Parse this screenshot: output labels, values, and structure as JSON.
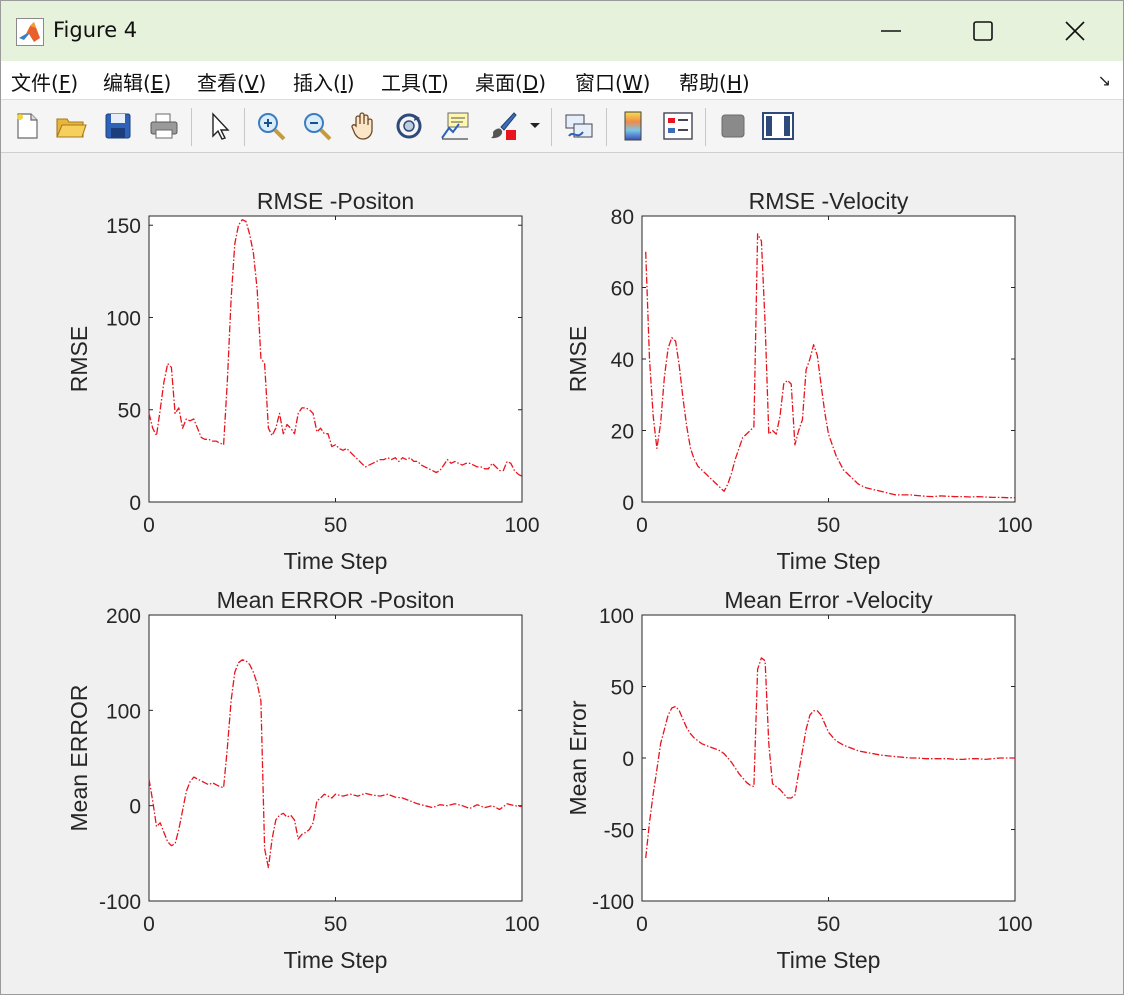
{
  "window": {
    "title": "Figure 4"
  },
  "menu": {
    "items": [
      {
        "label": "文件(",
        "key": "F",
        "close": ")"
      },
      {
        "label": "编辑(",
        "key": "E",
        "close": ")"
      },
      {
        "label": "查看(",
        "key": "V",
        "close": ")"
      },
      {
        "label": "插入(",
        "key": "I",
        "close": ")"
      },
      {
        "label": "工具(",
        "key": "T",
        "close": ")"
      },
      {
        "label": "桌面(",
        "key": "D",
        "close": ")"
      },
      {
        "label": "窗口(",
        "key": "W",
        "close": ")"
      },
      {
        "label": "帮助(",
        "key": "H",
        "close": ")"
      }
    ]
  },
  "toolbar": {
    "icons": [
      "new-figure-icon",
      "open-icon",
      "save-icon",
      "print-icon",
      "select-arrow-icon",
      "zoom-in-icon",
      "zoom-out-icon",
      "pan-hand-icon",
      "rotate-3d-icon",
      "data-cursor-icon",
      "brush-icon",
      "brush-dropdown-icon",
      "link-plot-icon",
      "colorbar-icon",
      "legend-icon",
      "hide-plot-tools-icon",
      "show-plot-tools-icon"
    ]
  },
  "chart_data": [
    {
      "type": "line",
      "title": "RMSE -Positon",
      "xlabel": "Time Step",
      "ylabel": "RMSE",
      "xlim": [
        0,
        100
      ],
      "ylim": [
        0,
        155
      ],
      "xticks": [
        "0",
        "50",
        "100"
      ],
      "yticks": [
        "0",
        "50",
        "100",
        "150"
      ],
      "color": "#e8141e",
      "x": [
        0,
        1,
        2,
        3,
        4,
        5,
        6,
        7,
        8,
        9,
        10,
        11,
        12,
        13,
        14,
        15,
        16,
        17,
        18,
        19,
        20,
        21,
        22,
        23,
        24,
        25,
        26,
        27,
        28,
        29,
        30,
        31,
        32,
        33,
        34,
        35,
        36,
        37,
        38,
        39,
        40,
        41,
        42,
        43,
        44,
        45,
        46,
        47,
        48,
        49,
        50,
        51,
        52,
        53,
        54,
        55,
        56,
        57,
        58,
        59,
        60,
        61,
        62,
        63,
        64,
        65,
        66,
        67,
        68,
        69,
        70,
        71,
        72,
        73,
        74,
        75,
        76,
        77,
        78,
        79,
        80,
        81,
        82,
        83,
        84,
        85,
        86,
        87,
        88,
        89,
        90,
        91,
        92,
        93,
        94,
        95,
        96,
        97,
        98,
        99,
        100
      ],
      "y": [
        48,
        40,
        36,
        50,
        65,
        75,
        73,
        48,
        51,
        40,
        45,
        44,
        45,
        40,
        35,
        34,
        34,
        33,
        33,
        32,
        31,
        65,
        110,
        140,
        150,
        153,
        152,
        145,
        135,
        115,
        78,
        75,
        40,
        36,
        40,
        48,
        37,
        42,
        40,
        37,
        48,
        51,
        51,
        50,
        48,
        38,
        40,
        37,
        37,
        30,
        31,
        29,
        28,
        29,
        27,
        25,
        23,
        21,
        19,
        20,
        21,
        22,
        23,
        23,
        24,
        23,
        24,
        22,
        24,
        23,
        24,
        22,
        22,
        20,
        19,
        18,
        17,
        16,
        17,
        20,
        23,
        21,
        22,
        21,
        20,
        21,
        21,
        20,
        19,
        19,
        18,
        18,
        21,
        19,
        17,
        17,
        22,
        21,
        17,
        15,
        14
      ]
    },
    {
      "type": "line",
      "title": "RMSE -Velocity",
      "xlabel": "Time Step",
      "ylabel": "RMSE",
      "xlim": [
        0,
        100
      ],
      "ylim": [
        0,
        80
      ],
      "xticks": [
        "0",
        "50",
        "100"
      ],
      "yticks": [
        "0",
        "20",
        "40",
        "60",
        "80"
      ],
      "color": "#e8141e",
      "x": [
        1,
        2,
        3,
        4,
        5,
        6,
        7,
        8,
        9,
        10,
        11,
        12,
        13,
        14,
        15,
        16,
        17,
        18,
        19,
        20,
        21,
        22,
        23,
        24,
        25,
        26,
        27,
        28,
        29,
        30,
        31,
        32,
        33,
        34,
        35,
        36,
        37,
        38,
        39,
        40,
        41,
        42,
        43,
        44,
        45,
        46,
        47,
        48,
        49,
        50,
        52,
        54,
        56,
        58,
        60,
        62,
        64,
        66,
        68,
        70,
        72,
        74,
        76,
        78,
        80,
        82,
        84,
        86,
        88,
        90,
        92,
        94,
        96,
        98,
        100
      ],
      "y": [
        70,
        40,
        24,
        15,
        22,
        35,
        43,
        46,
        45,
        38,
        29,
        21,
        15,
        12,
        10,
        9,
        8,
        7,
        6,
        5,
        4,
        3,
        5,
        8,
        12,
        15,
        18,
        19,
        20,
        21,
        75,
        73,
        50,
        19,
        20,
        19,
        24,
        33,
        34,
        33,
        16,
        20,
        23,
        37,
        40,
        44,
        41,
        33,
        25,
        19,
        13,
        9,
        7,
        5,
        4,
        3.5,
        3,
        2.5,
        2,
        2,
        2,
        1.8,
        1.6,
        1.5,
        1.7,
        1.6,
        1.5,
        1.5,
        1.4,
        1.5,
        1.4,
        1.3,
        1.3,
        1.2,
        1.2
      ]
    },
    {
      "type": "line",
      "title": "Mean ERROR -Positon",
      "xlabel": "Time Step",
      "ylabel": "Mean ERROR",
      "xlim": [
        0,
        100
      ],
      "ylim": [
        -100,
        200
      ],
      "xticks": [
        "0",
        "50",
        "100"
      ],
      "yticks": [
        "-100",
        "0",
        "100",
        "200"
      ],
      "color": "#e8141e",
      "x": [
        0,
        1,
        2,
        3,
        4,
        5,
        6,
        7,
        8,
        9,
        10,
        11,
        12,
        13,
        14,
        15,
        16,
        17,
        18,
        19,
        20,
        21,
        22,
        23,
        24,
        25,
        26,
        27,
        28,
        29,
        30,
        31,
        32,
        33,
        34,
        35,
        36,
        37,
        38,
        39,
        40,
        41,
        42,
        43,
        44,
        45,
        46,
        47,
        48,
        49,
        50,
        52,
        54,
        56,
        58,
        60,
        62,
        64,
        66,
        68,
        70,
        72,
        74,
        76,
        78,
        80,
        82,
        84,
        86,
        88,
        90,
        92,
        94,
        96,
        98,
        100
      ],
      "y": [
        28,
        5,
        -22,
        -18,
        -28,
        -38,
        -42,
        -40,
        -25,
        -5,
        15,
        25,
        30,
        28,
        26,
        24,
        22,
        24,
        22,
        20,
        19,
        60,
        110,
        140,
        150,
        153,
        152,
        148,
        140,
        128,
        110,
        -45,
        -65,
        -35,
        -15,
        -10,
        -8,
        -12,
        -10,
        -15,
        -35,
        -30,
        -28,
        -25,
        -18,
        5,
        8,
        12,
        10,
        8,
        12,
        10,
        12,
        10,
        13,
        11,
        10,
        12,
        9,
        8,
        5,
        2,
        0,
        -2,
        1,
        0,
        2,
        0,
        -3,
        1,
        -2,
        0,
        -4,
        2,
        0,
        -1
      ]
    },
    {
      "type": "line",
      "title": "Mean Error -Velocity",
      "xlabel": "Time Step",
      "ylabel": "Mean Error",
      "xlim": [
        0,
        100
      ],
      "ylim": [
        -100,
        100
      ],
      "xticks": [
        "0",
        "50",
        "100"
      ],
      "yticks": [
        "-100",
        "-50",
        "0",
        "50",
        "100"
      ],
      "color": "#e8141e",
      "x": [
        1,
        2,
        3,
        4,
        5,
        6,
        7,
        8,
        9,
        10,
        11,
        12,
        13,
        14,
        15,
        16,
        17,
        18,
        19,
        20,
        21,
        22,
        23,
        24,
        25,
        26,
        27,
        28,
        29,
        30,
        31,
        32,
        33,
        34,
        35,
        36,
        37,
        38,
        39,
        40,
        41,
        42,
        43,
        44,
        45,
        46,
        47,
        48,
        49,
        50,
        52,
        54,
        56,
        58,
        60,
        62,
        64,
        66,
        68,
        70,
        72,
        74,
        76,
        78,
        80,
        82,
        84,
        86,
        88,
        90,
        92,
        94,
        96,
        98,
        100
      ],
      "y": [
        -70,
        -45,
        -25,
        -8,
        10,
        20,
        30,
        35,
        36,
        33,
        27,
        21,
        17,
        14,
        12,
        10,
        9,
        8,
        7,
        6,
        5,
        3,
        0,
        -3,
        -7,
        -11,
        -14,
        -17,
        -19,
        -20,
        62,
        70,
        68,
        10,
        -18,
        -20,
        -22,
        -25,
        -28,
        -28,
        -26,
        -10,
        5,
        20,
        30,
        33,
        33,
        30,
        24,
        18,
        12,
        9,
        7,
        5,
        4,
        3,
        2,
        1.5,
        1,
        0.5,
        0,
        0,
        -0.5,
        -0.5,
        -0.5,
        -0.5,
        -1,
        -1,
        -0.5,
        -0.5,
        -1,
        -0.5,
        0,
        0,
        0
      ]
    }
  ]
}
